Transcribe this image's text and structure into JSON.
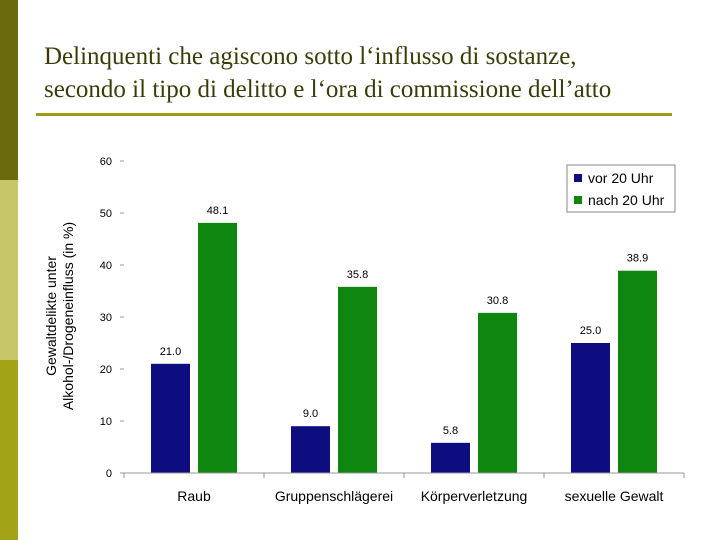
{
  "slide": {
    "title_line1": "Delinquenti che agiscono sotto l‘influsso di sostanze,",
    "title_line2": "secondo il tipo di delitto e l‘ora di commissione dell’atto"
  },
  "colors": {
    "series_before": "#0d0d80",
    "series_after": "#0f860f",
    "title_text": "#3c3c0a",
    "rule": "#9c9c1a"
  },
  "chart_data": {
    "type": "bar",
    "categories": [
      "Raub",
      "Gruppenschlägerei",
      "Körperverletzung",
      "sexuelle Gewalt"
    ],
    "series": [
      {
        "name": "vor 20 Uhr",
        "values": [
          21.0,
          9.0,
          5.8,
          25.0
        ],
        "color": "#0d0d80"
      },
      {
        "name": "nach 20 Uhr",
        "values": [
          48.1,
          35.8,
          30.8,
          38.9
        ],
        "color": "#0f860f"
      }
    ],
    "ylabel_line1": "Gewaltdelikte unter",
    "ylabel_line2": "Alkohol-/Drogeneinfluss (in %)",
    "ylim": [
      0,
      60
    ],
    "yticks": [
      0,
      10,
      20,
      30,
      40,
      50,
      60
    ],
    "legend_position": "top-right",
    "grid": false
  }
}
